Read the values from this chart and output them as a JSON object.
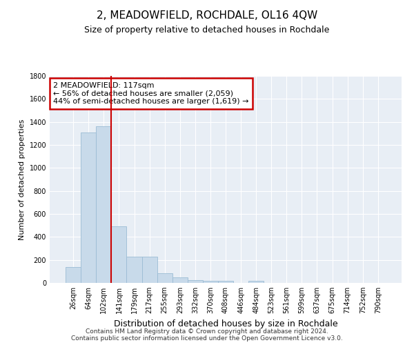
{
  "title": "2, MEADOWFIELD, ROCHDALE, OL16 4QW",
  "subtitle": "Size of property relative to detached houses in Rochdale",
  "xlabel": "Distribution of detached houses by size in Rochdale",
  "ylabel": "Number of detached properties",
  "footer_line1": "Contains HM Land Registry data © Crown copyright and database right 2024.",
  "footer_line2": "Contains public sector information licensed under the Open Government Licence v3.0.",
  "bar_labels": [
    "26sqm",
    "64sqm",
    "102sqm",
    "141sqm",
    "179sqm",
    "217sqm",
    "255sqm",
    "293sqm",
    "332sqm",
    "370sqm",
    "408sqm",
    "446sqm",
    "484sqm",
    "523sqm",
    "561sqm",
    "599sqm",
    "637sqm",
    "675sqm",
    "714sqm",
    "752sqm",
    "790sqm"
  ],
  "bar_values": [
    140,
    1310,
    1360,
    490,
    230,
    230,
    85,
    50,
    25,
    20,
    20,
    0,
    20,
    0,
    0,
    0,
    0,
    0,
    0,
    0,
    0
  ],
  "bar_color": "#c8daea",
  "bar_edgecolor": "#9bbcd4",
  "ylim": [
    0,
    1800
  ],
  "yticks": [
    0,
    200,
    400,
    600,
    800,
    1000,
    1200,
    1400,
    1600,
    1800
  ],
  "vline_x": 2.5,
  "vline_color": "#cc0000",
  "annotation_line1": "2 MEADOWFIELD: 117sqm",
  "annotation_line2": "← 56% of detached houses are smaller (2,059)",
  "annotation_line3": "44% of semi-detached houses are larger (1,619) →",
  "ann_box_color": "#cc0000",
  "plot_bg_color": "#e8eef5",
  "grid_color": "#ffffff",
  "title_fontsize": 11,
  "subtitle_fontsize": 9,
  "tick_fontsize": 7,
  "ylabel_fontsize": 8,
  "xlabel_fontsize": 9,
  "footer_fontsize": 6.5
}
